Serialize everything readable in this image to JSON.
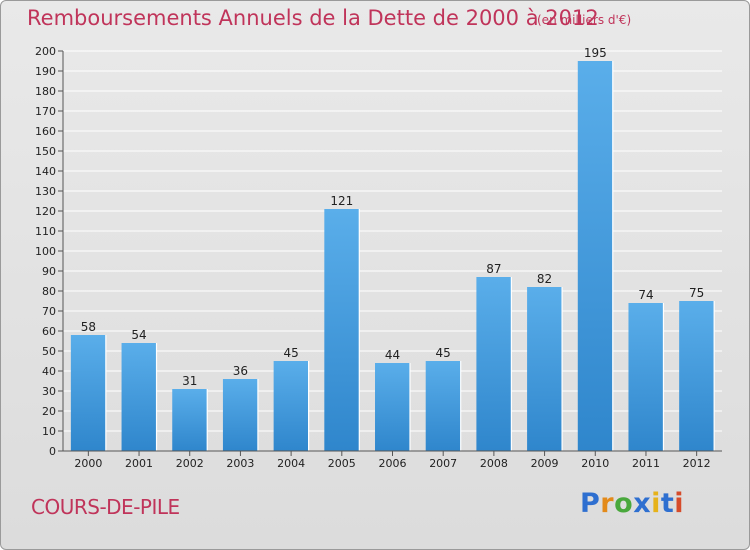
{
  "header": {
    "title": "Remboursements Annuels de la Dette de 2000 à 2012",
    "subtitle": "(en milliers d'€)"
  },
  "place": "COURS-DE-PILE",
  "logo": {
    "letters": [
      "P",
      "r",
      "o",
      "x",
      "i",
      "t",
      "i"
    ]
  },
  "colors": {
    "title": "#c0345a",
    "bar_top": "#5aaeea",
    "bar_bottom": "#2f86cc",
    "background": "#e4e4e4"
  },
  "chart_data": {
    "type": "bar",
    "title": "Remboursements Annuels de la Dette de 2000 à 2012",
    "xlabel": "",
    "ylabel": "en milliers d'€",
    "categories": [
      "2000",
      "2001",
      "2002",
      "2003",
      "2004",
      "2005",
      "2006",
      "2007",
      "2008",
      "2009",
      "2010",
      "2011",
      "2012"
    ],
    "values": [
      58,
      54,
      31,
      36,
      45,
      121,
      44,
      45,
      87,
      82,
      195,
      74,
      75
    ],
    "ylim": [
      0,
      200
    ],
    "ytick_step": 10,
    "grid": true,
    "data_labels": true
  }
}
